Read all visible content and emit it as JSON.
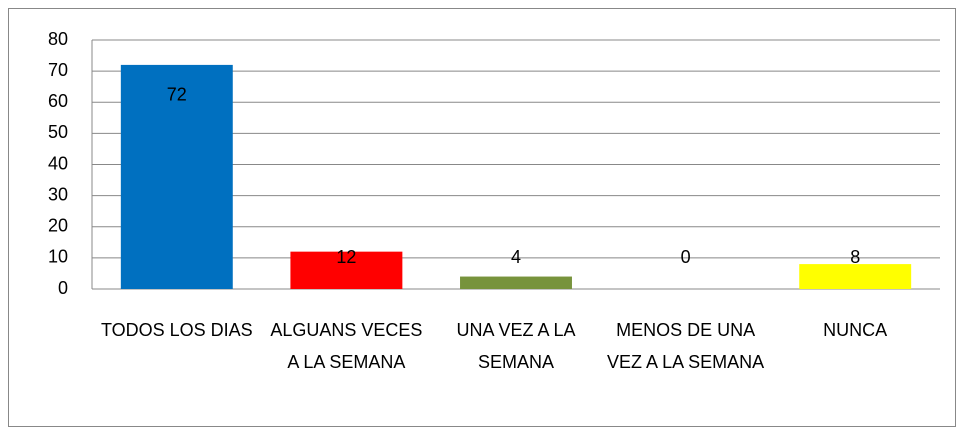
{
  "chart_data": {
    "type": "bar",
    "categories": [
      "TODOS LOS DIAS",
      "ALGUANS VECES A LA SEMANA",
      "UNA VEZ A LA SEMANA",
      "MENOS DE UNA VEZ A LA SEMANA",
      "NUNCA"
    ],
    "values": [
      72,
      12,
      4,
      0,
      8
    ],
    "colors": [
      "#0070c0",
      "#ff0000",
      "#77933c",
      "#4f81bd",
      "#ffff00"
    ],
    "ylim": [
      0,
      80
    ],
    "yticks": [
      0,
      10,
      20,
      30,
      40,
      50,
      60,
      70,
      80
    ],
    "grid": true
  }
}
